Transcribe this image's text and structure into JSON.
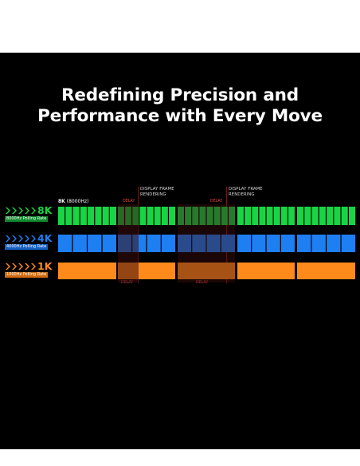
{
  "headline": {
    "line1": "Redefining Precision and",
    "line2": "Performance with Every Move"
  },
  "annotations": {
    "display_frame_1": [
      "DISPLAY FRAME",
      "RENDERING"
    ],
    "display_frame_2": [
      "DISPLAY FRAME",
      "RENDERING"
    ],
    "delay_label": "DELAY",
    "sample_rate_bold": "8K",
    "sample_rate_rest": " (8000Hz)"
  },
  "rows": [
    {
      "key": "8k",
      "label": "8K",
      "rate": "8000Hz Polling Rate",
      "color": "#19d444",
      "badge": "#0f8a2c"
    },
    {
      "key": "4k",
      "label": "4K",
      "rate": "4000Hz Polling Rate",
      "color": "#1e7ff2",
      "badge": "#1560c4"
    },
    {
      "key": "1k",
      "label": "1K",
      "rate": "1000Hz Polling Rate",
      "color": "#ff8a1c",
      "badge": "#d16b10"
    }
  ],
  "colors": {
    "background": "#000000",
    "delay_red": "#e0453c"
  }
}
